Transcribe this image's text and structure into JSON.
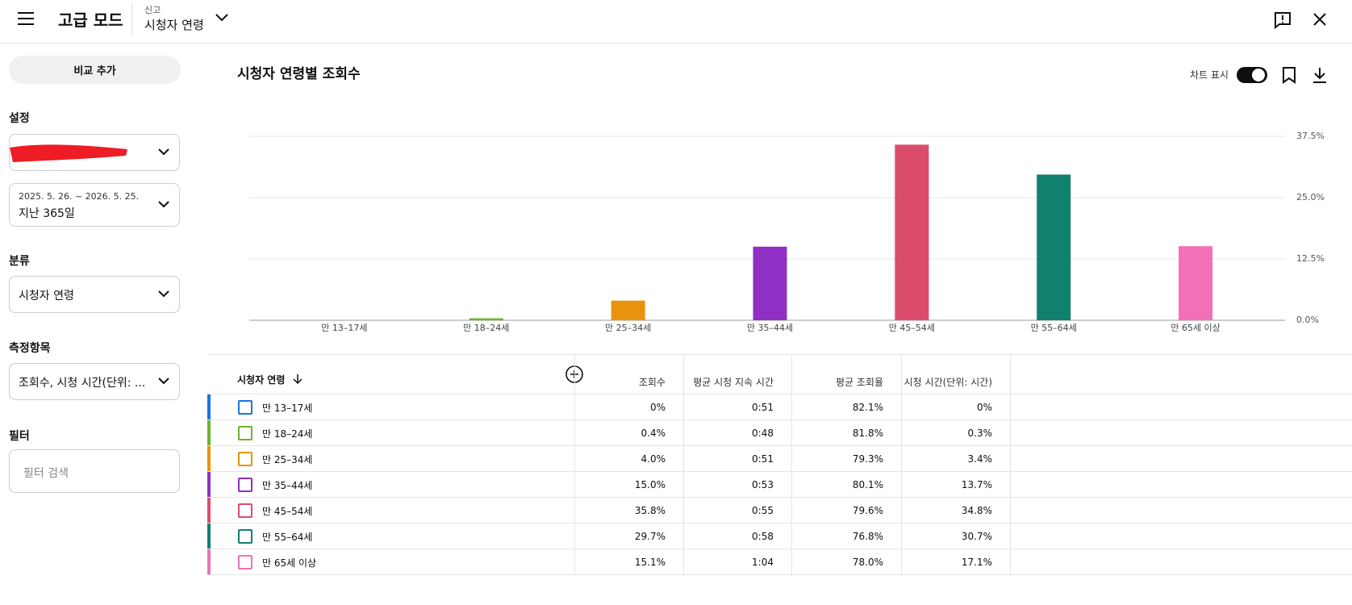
{
  "header": {
    "title": "고급 모드",
    "report_label": "신고",
    "report": "시청자 연령"
  },
  "sidebar": {
    "compare_button": "비교 추가",
    "settings_label": "설정",
    "date_range": "2025. 5. 26. ~ 2026. 5. 25.",
    "date_period": "지난 365일",
    "breakdown_label": "분류",
    "breakdown": "시청자 연령",
    "metrics_label": "측정항목",
    "metrics": "조회수, 시청 시간(단위: ...",
    "filter_label": "필터",
    "filter_placeholder": "필터 검색"
  },
  "chart_toggle_label": "차트 표시",
  "chart_data": {
    "type": "bar",
    "title": "시청자 연령별 조회수",
    "categories": [
      "만 13–17세",
      "만 18–24세",
      "만 25–34세",
      "만 35–44세",
      "만 45–54세",
      "만 55–64세",
      "만 65세 이상"
    ],
    "values": [
      0,
      0.4,
      4.0,
      15.0,
      35.8,
      29.7,
      15.1
    ],
    "colors": [
      "#1a73e8",
      "#6bb52c",
      "#e8930e",
      "#8f2fc4",
      "#db4b6b",
      "#11806f",
      "#f270b8"
    ],
    "ylim": [
      0,
      37.5
    ],
    "yticks": [
      {
        "value": 0,
        "label": "0.0%"
      },
      {
        "value": 12.5,
        "label": "12.5%"
      },
      {
        "value": 25,
        "label": "25.0%"
      },
      {
        "value": 37.5,
        "label": "37.5%"
      }
    ],
    "grid": true
  },
  "table": {
    "columns": [
      "시청자 연령",
      "조회수",
      "평균 시청 지속 시간",
      "평균 조회율",
      "시청 시간(단위: 시간)"
    ],
    "rows": [
      [
        "만 13–17세",
        "0%",
        "0:51",
        "82.1%",
        "0%"
      ],
      [
        "만 18–24세",
        "0.4%",
        "0:48",
        "81.8%",
        "0.3%"
      ],
      [
        "만 25–34세",
        "4.0%",
        "0:51",
        "79.3%",
        "3.4%"
      ],
      [
        "만 35–44세",
        "15.0%",
        "0:53",
        "80.1%",
        "13.7%"
      ],
      [
        "만 45–54세",
        "35.8%",
        "0:55",
        "79.6%",
        "34.8%"
      ],
      [
        "만 55–64세",
        "29.7%",
        "0:58",
        "76.8%",
        "30.7%"
      ],
      [
        "만 65세 이상",
        "15.1%",
        "1:04",
        "78.0%",
        "17.1%"
      ]
    ]
  }
}
